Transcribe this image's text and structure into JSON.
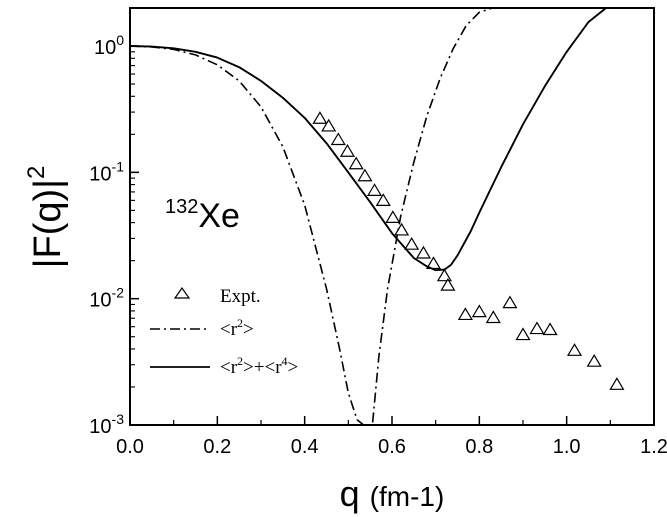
{
  "chart_data": {
    "type": "line",
    "xlabel": {
      "main": "q",
      "unit_base": "(fm",
      "unit_sup": "-1",
      "unit_close": ")"
    },
    "ylabel": {
      "main": "|F(q)|",
      "sup": "2"
    },
    "annotation": {
      "sup": "132",
      "main": "Xe"
    },
    "xlim": [
      0.0,
      1.2
    ],
    "ylim": [
      0.001,
      2.0
    ],
    "y_scale": "log",
    "x_ticks": [
      {
        "value": 0.0,
        "label": "0.0"
      },
      {
        "value": 0.2,
        "label": "0.2"
      },
      {
        "value": 0.4,
        "label": "0.4"
      },
      {
        "value": 0.6,
        "label": "0.6"
      },
      {
        "value": 0.8,
        "label": "0.8"
      },
      {
        "value": 1.0,
        "label": "1.0"
      },
      {
        "value": 1.2,
        "label": "1.2"
      }
    ],
    "y_ticks": [
      {
        "value": 1,
        "base": "10",
        "exp": "0"
      },
      {
        "value": 0.1,
        "base": "10",
        "exp": "-1"
      },
      {
        "value": 0.01,
        "base": "10",
        "exp": "-2"
      },
      {
        "value": 0.001,
        "base": "10",
        "exp": "-3"
      }
    ],
    "grid": false,
    "legend_position": "bottom-left",
    "series": [
      {
        "name": "Expt.",
        "kind": "scatter",
        "marker": "open-triangle",
        "x": [
          0.435,
          0.455,
          0.477,
          0.498,
          0.518,
          0.538,
          0.56,
          0.58,
          0.602,
          0.622,
          0.645,
          0.672,
          0.695,
          0.72,
          0.728,
          0.768,
          0.8,
          0.832,
          0.87,
          0.9,
          0.932,
          0.962,
          1.018,
          1.063,
          1.115
        ],
        "y": [
          0.268,
          0.233,
          0.182,
          0.147,
          0.117,
          0.094,
          0.072,
          0.06,
          0.044,
          0.035,
          0.027,
          0.023,
          0.019,
          0.0152,
          0.0128,
          0.0075,
          0.0079,
          0.0071,
          0.0093,
          0.0052,
          0.0058,
          0.0057,
          0.0039,
          0.0032,
          0.0021
        ]
      },
      {
        "name": "<r²>",
        "legend_base": "<r",
        "legend_sup": "2",
        "legend_end": ">",
        "kind": "line",
        "style": "dash-dot",
        "x": [
          0.0,
          0.05,
          0.1,
          0.15,
          0.2,
          0.25,
          0.3,
          0.35,
          0.4,
          0.45,
          0.48,
          0.5,
          0.52,
          0.535,
          0.555,
          0.57,
          0.59,
          0.62,
          0.65,
          0.68,
          0.71,
          0.74,
          0.77,
          0.8,
          0.83
        ],
        "y": [
          1.0,
          0.985,
          0.94,
          0.85,
          0.71,
          0.53,
          0.33,
          0.16,
          0.055,
          0.012,
          0.004,
          0.0018,
          0.0011,
          0.001,
          0.001,
          0.0035,
          0.012,
          0.045,
          0.12,
          0.28,
          0.55,
          0.95,
          1.45,
          1.85,
          2.0
        ]
      },
      {
        "name": "<r²>+<r⁴>",
        "legend_base": "<r",
        "legend_sup": "2",
        "legend_mid": ">+<r",
        "legend_sup2": "4",
        "legend_end": ">",
        "kind": "line",
        "style": "solid",
        "x": [
          0.0,
          0.05,
          0.1,
          0.15,
          0.2,
          0.25,
          0.3,
          0.35,
          0.4,
          0.45,
          0.5,
          0.55,
          0.6,
          0.65,
          0.68,
          0.7,
          0.72,
          0.735,
          0.75,
          0.78,
          0.8,
          0.85,
          0.9,
          0.95,
          1.0,
          1.05,
          1.09
        ],
        "y": [
          1.0,
          0.99,
          0.96,
          0.9,
          0.81,
          0.68,
          0.53,
          0.39,
          0.27,
          0.17,
          0.1,
          0.058,
          0.033,
          0.021,
          0.018,
          0.0168,
          0.017,
          0.0185,
          0.022,
          0.034,
          0.048,
          0.11,
          0.24,
          0.48,
          0.9,
          1.55,
          2.0
        ]
      }
    ]
  }
}
